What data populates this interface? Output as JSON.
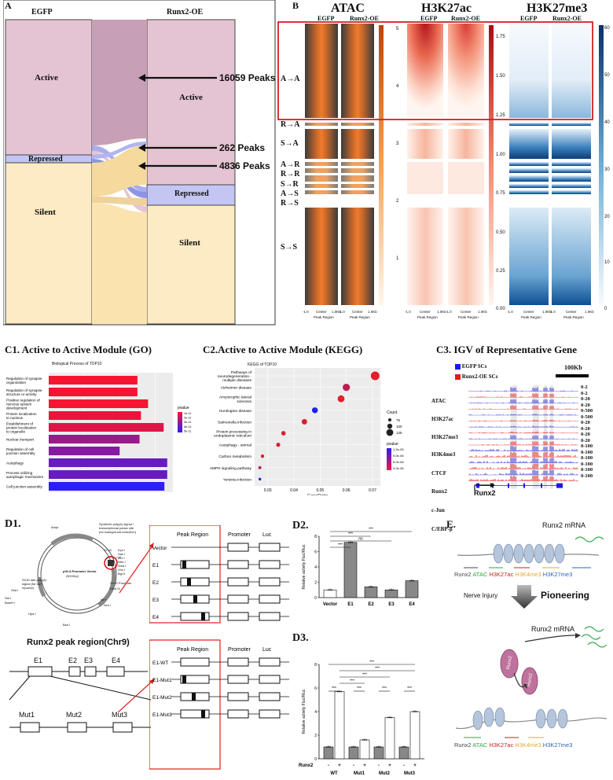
{
  "panelA": {
    "letter": "A",
    "left_header": "EGFP",
    "right_header": "Runx2-OE",
    "states_left": [
      "Active",
      "Repressed",
      "Silent"
    ],
    "states_right": [
      "Active",
      "Repressed",
      "Silent"
    ],
    "peaks": [
      "16059 Peaks",
      "262 Peaks",
      "4836 Peaks"
    ],
    "colors": {
      "active": "#e4c3d3",
      "repressed": "#c3c6f2",
      "silent": "#fdebc4",
      "flow_active": "#c8a0b6",
      "flow_silent": "#f5d99d",
      "flow_repr": "#9aa0ea"
    }
  },
  "panelB": {
    "letter": "B",
    "tracks": [
      "ATAC",
      "H3K27ac",
      "H3K27me3"
    ],
    "conds": [
      "EGFP",
      "Runx2-OE"
    ],
    "modules": [
      "A→A",
      "R→A",
      "S→A",
      "A→R",
      "R→R",
      "S→R",
      "A→S",
      "R→S",
      "S→S"
    ],
    "x_ticks": [
      "-1.0",
      "Center",
      "1.0Kb"
    ],
    "x_label": "Peak Region",
    "atac_scale": [
      "5",
      "4",
      "3",
      "2",
      "1"
    ],
    "ac_scale": [
      "1.75",
      "1.50",
      "1.25",
      "1.00",
      "0.75",
      "0.50",
      "0.25",
      "0.00"
    ],
    "me3_scale": [
      "60",
      "50",
      "40",
      "30",
      "20",
      "10",
      "0"
    ]
  },
  "panelC1": {
    "title": "C1. Active to Active Module (GO)",
    "subtitle": "Biological Process of TOP10",
    "x_label": "Count",
    "legend_title": "pvalue",
    "legend_ticks": [
      "1e-11",
      "2e-11",
      "3e-11",
      "4e-11",
      "5e-11"
    ],
    "chart_data": {
      "type": "bar",
      "orientation": "horizontal",
      "categories": [
        "Regulation of synapse organization",
        "Regulation of synapse structure or activity",
        "Positive regulation of nervous system development",
        "Protein localization to nucleus",
        "Establishment of protein localization to organelle",
        "Nuclear transport",
        "Regulation of cell junction assembly",
        "Autophagy",
        "Process utilizing autophagic mechanism",
        "Cell junction assembly"
      ],
      "values": [
        125,
        125,
        140,
        130,
        162,
        128,
        100,
        167,
        167,
        163
      ],
      "pvalues": [
        1e-11,
        1e-11,
        1e-11,
        1.2e-11,
        1.5e-11,
        3e-11,
        3.5e-11,
        4.2e-11,
        4.2e-11,
        5.5e-11
      ],
      "x_ticks": [
        "0",
        "50",
        "100",
        "150"
      ],
      "xlim": [
        0,
        175
      ]
    }
  },
  "panelC2": {
    "title": "C2.Active to Active Module (KEGG)",
    "subtitle": "KEGG of TOP10",
    "x_label": "GeneRatio",
    "size_title": "Count",
    "size_ticks": [
      "75",
      "100",
      "125"
    ],
    "color_title": "pvalue",
    "color_ticks": [
      "1.2e-05",
      "9.0e-06",
      "6.0e-06",
      "3.0e-06"
    ],
    "chart_data": {
      "type": "scatter",
      "categories": [
        "Pathways of neurodegeneration - multiple diseases",
        "Alzheimer disease",
        "Amyotrophic lateral sclerosis",
        "Huntington disease",
        "Salmonella infection",
        "Protein processing in endoplasmic reticulum",
        "Autophagy - animal",
        "Carbon metabolism",
        "AMPK signaling pathway",
        "Yersinia infection"
      ],
      "gene_ratio": [
        0.071,
        0.06,
        0.058,
        0.048,
        0.044,
        0.036,
        0.034,
        0.028,
        0.027,
        0.027
      ],
      "count": [
        130,
        110,
        105,
        90,
        85,
        70,
        65,
        55,
        50,
        45
      ],
      "pvalue": [
        1e-07,
        2.5e-06,
        1e-07,
        1.2e-05,
        5e-07,
        5e-07,
        1e-06,
        1e-06,
        3e-06,
        1.1e-05
      ],
      "x_ticks": [
        "0.03",
        "0.04",
        "0.05",
        "0.06",
        "0.07"
      ],
      "xlim": [
        0.025,
        0.073
      ]
    }
  },
  "panelC3": {
    "title": "C3. IGV of Representative Gene",
    "legend": [
      "EGFP SCs",
      "Runx2-OE SCs"
    ],
    "scalebar": "100Kb",
    "tracks": [
      "ATAC",
      "H3K27ac",
      "H3K27me3",
      "H3K4me3",
      "CTCF",
      "Runx2",
      "c-Jun",
      "C/EBP-β"
    ],
    "ranges": [
      "0-2",
      "0-2",
      "0-20",
      "0-20",
      "0-500",
      "0-500",
      "0-20",
      "0-20",
      "0-20",
      "0-20",
      "0-100",
      "0-100",
      "0-100",
      "0-100",
      "0-100",
      "0-100"
    ],
    "gene": "Runx2"
  },
  "panelD1": {
    "title": "D1.",
    "vector_name": "pGL3-Promoter Vector",
    "vector_sub": "(5010bp)",
    "vector_labels": [
      "Ampr",
      "Synthetic poly(A) signal / transcriptional pause site (for background reduction)",
      "f1 ori",
      "SV40 Promoter",
      "Kpn I",
      "Sac I",
      "Mlu I",
      "Nhe I",
      "Sma I",
      "Xho I",
      "Bgl II",
      "Hind III",
      "luc+",
      "Nco I",
      "SV40 late poly(A) signal (for luc+ reporter)",
      "Xba I",
      "Sal I",
      "BamH I",
      "Hpa I",
      "Bsa I"
    ],
    "peak_title": "Runx2 peak region(Chr9)",
    "exons": [
      "E1",
      "E2",
      "E3",
      "E4"
    ],
    "muts": [
      "Mut1",
      "Mut2",
      "Mut3"
    ],
    "construct_header": [
      "Peak Region",
      "Promoter",
      "Luc"
    ],
    "constructs_top": [
      "Vector",
      "E1",
      "E2",
      "E3",
      "E4"
    ],
    "constructs_bottom": [
      "E1-WT",
      "E1-Mut1",
      "E1-Mut2",
      "E1-Mut3"
    ]
  },
  "panelD2": {
    "title": "D2.",
    "y_label": "Relative activity Fluc/Rluc",
    "sig": [
      "***",
      "ns",
      "***",
      "***"
    ],
    "chart_data": {
      "type": "bar",
      "categories": [
        "Vector",
        "E1",
        "E2",
        "E3",
        "E4"
      ],
      "values": [
        1.0,
        7.2,
        1.4,
        1.0,
        2.2
      ],
      "y_ticks": [
        "0",
        "2",
        "4",
        "6",
        "8"
      ],
      "ylim": [
        0,
        8
      ]
    }
  },
  "panelD3": {
    "title": "D3.",
    "y_label": "Relative activity Fluc/Rluc",
    "row_label": "Runx2",
    "groups": [
      "WT",
      "Mut1",
      "Mut2",
      "Mut3"
    ],
    "signs": [
      "-",
      "+"
    ],
    "sig": [
      "***",
      "***",
      "***",
      "***",
      "***",
      "***",
      "***",
      "***"
    ],
    "chart_data": {
      "type": "bar",
      "categories": [
        "WT -",
        "WT +",
        "Mut1 -",
        "Mut1 +",
        "Mut2 -",
        "Mut2 +",
        "Mut3 -",
        "Mut3 +"
      ],
      "values": [
        1.0,
        5.7,
        1.0,
        1.6,
        1.0,
        3.5,
        1.0,
        4.0
      ],
      "y_ticks": [
        "0",
        "2",
        "4",
        "6",
        "8"
      ],
      "ylim": [
        0,
        8
      ]
    }
  },
  "panelE": {
    "letter": "E.",
    "mrna": "Runx2 mRNA",
    "legend": [
      "Runx2",
      "ATAC",
      "H3K27ac",
      "H3K4me3",
      "H3K27me3"
    ],
    "legend_colors": [
      "#444444",
      "#2aa84a",
      "#d11c1c",
      "#e3a92b",
      "#2a63b8"
    ],
    "nerve": "Nerve Injury",
    "pioneering": "Pioneering",
    "protein": "Runx2"
  }
}
